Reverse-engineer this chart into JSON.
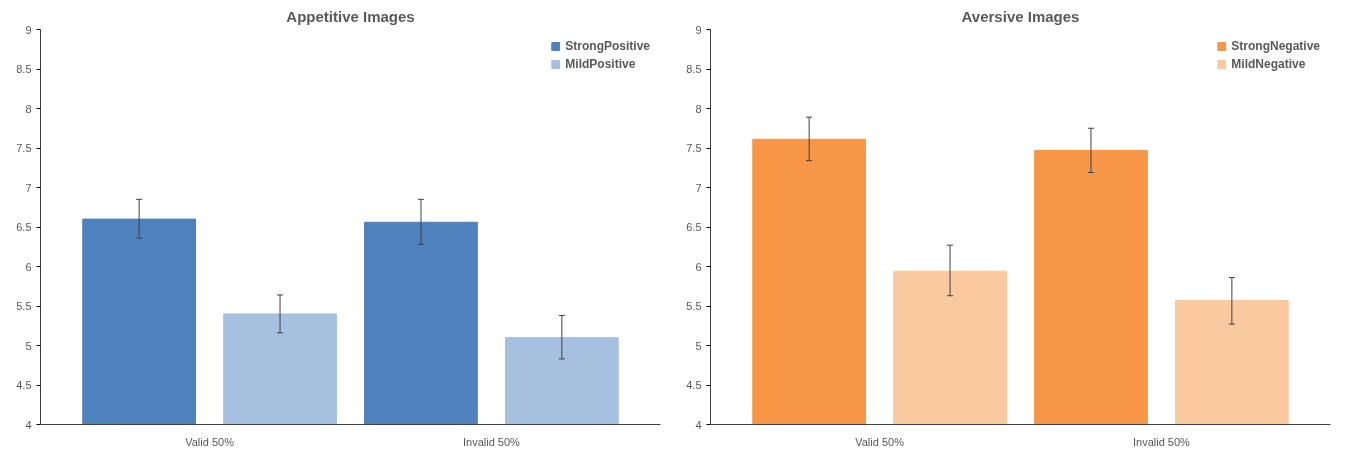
{
  "chart_data": [
    {
      "type": "bar",
      "title": "Appetitive Images",
      "categories": [
        "Valid 50%",
        "Invalid 50%"
      ],
      "series": [
        {
          "name": "StrongPositive",
          "color": "#4f81bd",
          "values": [
            6.6,
            6.56
          ],
          "errors": [
            [
              6.36,
              6.85
            ],
            [
              6.28,
              6.85
            ]
          ]
        },
        {
          "name": "MildPositive",
          "color": "#a7c0e0",
          "values": [
            5.4,
            5.1
          ],
          "errors": [
            [
              5.16,
              5.64
            ],
            [
              4.83,
              5.38
            ]
          ]
        }
      ],
      "ylim": [
        4,
        9
      ],
      "yticks": [
        4,
        4.5,
        5,
        5.5,
        6,
        6.5,
        7,
        7.5,
        8,
        8.5,
        9
      ],
      "grid": false,
      "legend": "top right"
    },
    {
      "type": "bar",
      "title": "Aversive Images",
      "categories": [
        "Valid 50%",
        "Invalid 50%"
      ],
      "series": [
        {
          "name": "StrongNegative",
          "color": "#f79646",
          "values": [
            7.61,
            7.47
          ],
          "errors": [
            [
              7.34,
              7.89
            ],
            [
              7.19,
              7.75
            ]
          ]
        },
        {
          "name": "MildNegative",
          "color": "#fbc9a0",
          "values": [
            5.94,
            5.57
          ],
          "errors": [
            [
              5.63,
              6.27
            ],
            [
              5.27,
              5.86
            ]
          ]
        }
      ],
      "ylim": [
        4,
        9
      ],
      "yticks": [
        4,
        4.5,
        5,
        5.5,
        6,
        6.5,
        7,
        7.5,
        8,
        8.5,
        9
      ],
      "grid": false,
      "legend": "top right"
    }
  ]
}
